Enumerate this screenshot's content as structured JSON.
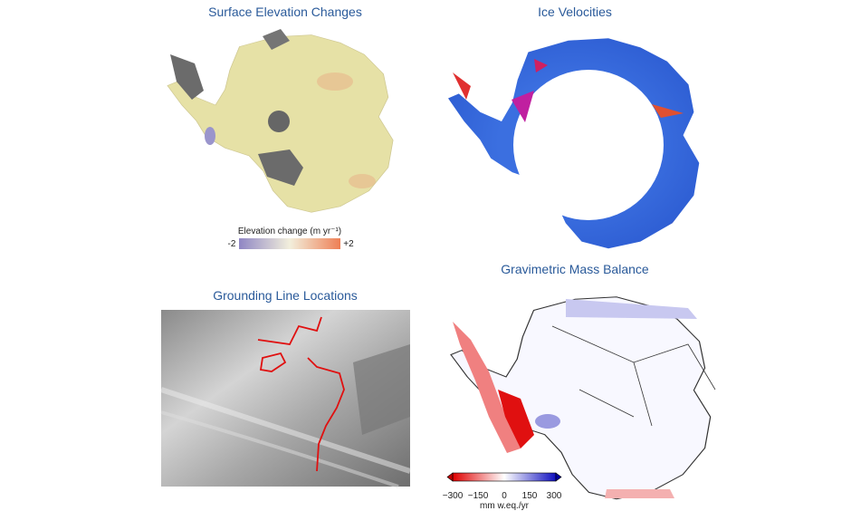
{
  "panels": [
    {
      "title": "Surface Elevation Changes",
      "colorbar": {
        "label": "Elevation change (m yr⁻¹)",
        "ticks": [
          "-2",
          "+2"
        ]
      }
    },
    {
      "title": "Ice Velocities"
    },
    {
      "title": "Grounding Line Locations"
    },
    {
      "title": "Gravimetric Mass Balance",
      "colorbar": {
        "label": "mm w.eq./yr",
        "ticks": [
          "−300",
          "−150",
          "0",
          "150",
          "300"
        ]
      }
    }
  ]
}
